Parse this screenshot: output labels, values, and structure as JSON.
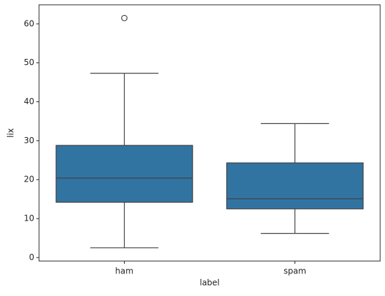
{
  "chart_data": {
    "type": "box",
    "xlabel": "label",
    "ylabel": "lix",
    "categories": [
      "ham",
      "spam"
    ],
    "boxes": [
      {
        "min": 2.5,
        "q1": 14.2,
        "median": 20.4,
        "q3": 28.8,
        "max": 47.3,
        "outliers": [
          61.5
        ]
      },
      {
        "min": 6.2,
        "q1": 12.5,
        "median": 15.1,
        "q3": 24.3,
        "max": 34.4,
        "outliers": []
      }
    ],
    "color": "#3274a1",
    "edge_color": "#3f3f3f",
    "ylim": [
      -0.9,
      64.9
    ],
    "yticks": [
      0,
      10,
      20,
      30,
      40,
      50,
      60
    ]
  }
}
